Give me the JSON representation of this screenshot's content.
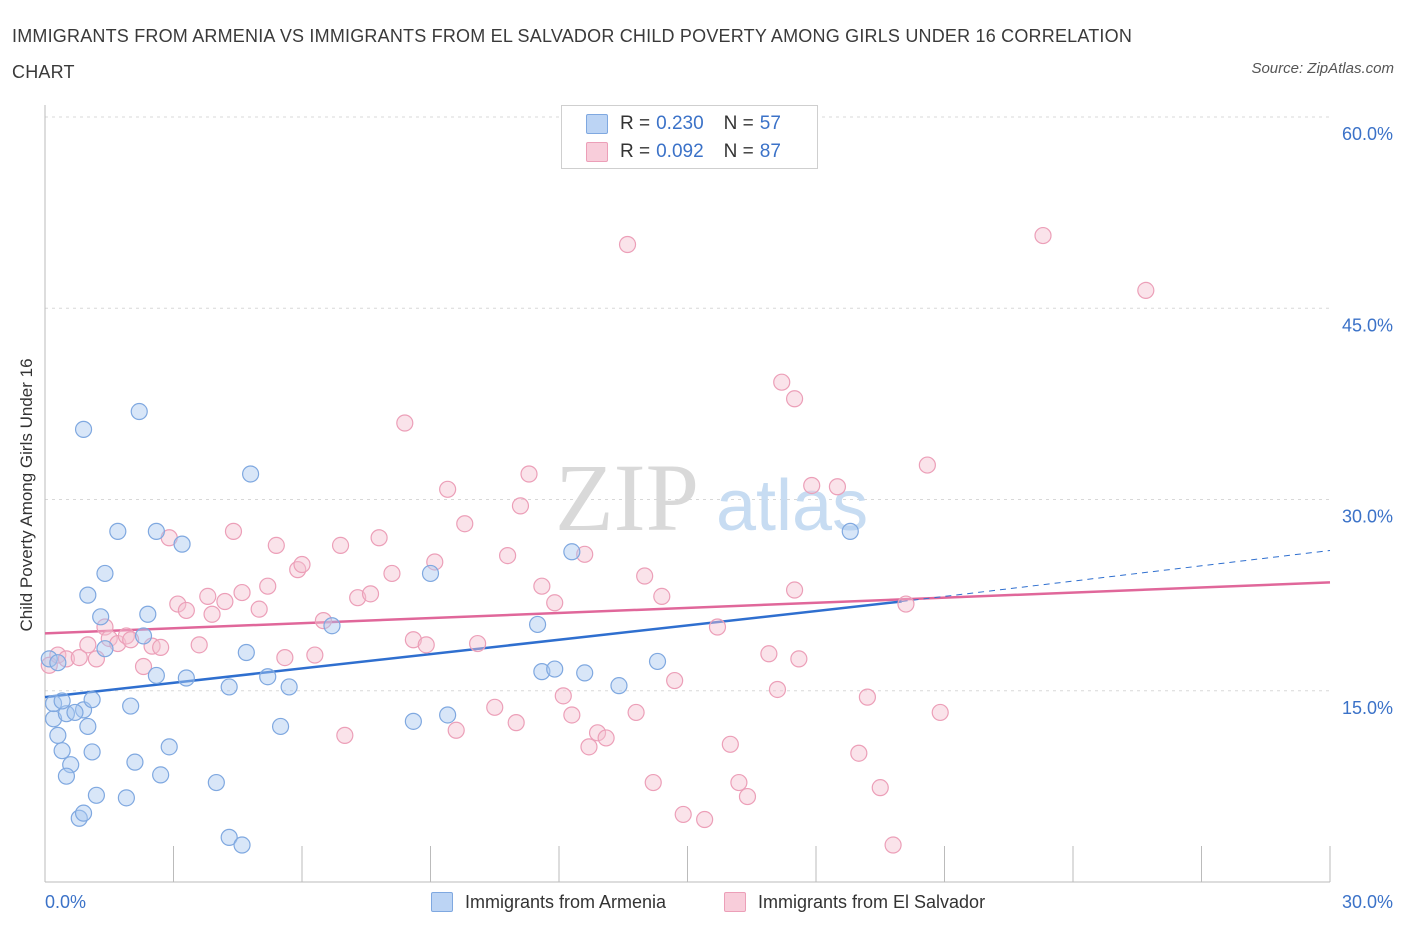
{
  "title": "IMMIGRANTS FROM ARMENIA VS IMMIGRANTS FROM EL SALVADOR CHILD POVERTY AMONG GIRLS UNDER 16 CORRELATION CHART",
  "source": "Source: ZipAtlas.com",
  "watermark": {
    "zip": "ZIP",
    "atlas": "atlas"
  },
  "legend": {
    "armenia": {
      "r_label": "R =",
      "r_value": "0.230",
      "n_label": "N =",
      "n_value": "57"
    },
    "elsalvador": {
      "r_label": "R =",
      "r_value": "0.092",
      "n_label": "N =",
      "n_value": "87"
    }
  },
  "bottom_legend": {
    "armenia": "Immigrants from Armenia",
    "elsalvador": "Immigrants from El Salvador"
  },
  "colors": {
    "armenia_fill": "#a9c8f0",
    "armenia_stroke": "#7fa8e0",
    "armenia_line": "#2f6fcf",
    "elsalvador_fill": "#f5c0d0",
    "elsalvador_stroke": "#ec9fb8",
    "elsalvador_line": "#e0679a",
    "tick_label": "#3b72c8"
  },
  "chart_data": {
    "type": "scatter",
    "title": "IMMIGRANTS FROM ARMENIA VS IMMIGRANTS FROM EL SALVADOR CHILD POVERTY AMONG GIRLS UNDER 16 CORRELATION CHART",
    "xlabel": "",
    "ylabel": "Child Poverty Among Girls Under 16",
    "xlim": [
      0,
      30
    ],
    "ylim": [
      0,
      60
    ],
    "x_tick_labels": [
      "0.0%",
      "30.0%"
    ],
    "y_tick_labels": [
      "15.0%",
      "30.0%",
      "45.0%",
      "60.0%"
    ],
    "y_ticks": [
      15,
      30,
      45,
      60
    ],
    "grid": true,
    "legend_position": "top-center",
    "series": [
      {
        "name": "Immigrants from Armenia",
        "trend": {
          "x": [
            0,
            20
          ],
          "y": [
            14.5,
            22.0
          ],
          "dashed_extension": {
            "x": [
              20,
              30
            ],
            "y": [
              22.0,
              26.0
            ]
          }
        },
        "points": [
          [
            0.1,
            17.5
          ],
          [
            0.2,
            12.8
          ],
          [
            0.3,
            17.2
          ],
          [
            0.5,
            13.2
          ],
          [
            0.4,
            10.3
          ],
          [
            0.6,
            9.2
          ],
          [
            0.5,
            8.3
          ],
          [
            0.8,
            5.0
          ],
          [
            0.9,
            5.4
          ],
          [
            0.9,
            13.5
          ],
          [
            1.0,
            12.2
          ],
          [
            1.1,
            10.2
          ],
          [
            1.2,
            6.8
          ],
          [
            1.3,
            20.8
          ],
          [
            1.4,
            18.3
          ],
          [
            1.4,
            24.2
          ],
          [
            1.0,
            22.5
          ],
          [
            0.9,
            35.5
          ],
          [
            1.7,
            27.5
          ],
          [
            1.9,
            6.6
          ],
          [
            2.0,
            13.8
          ],
          [
            2.1,
            9.4
          ],
          [
            2.2,
            36.9
          ],
          [
            2.3,
            19.3
          ],
          [
            2.4,
            21.0
          ],
          [
            2.6,
            27.5
          ],
          [
            2.7,
            8.4
          ],
          [
            2.6,
            16.2
          ],
          [
            2.9,
            10.6
          ],
          [
            3.3,
            16.0
          ],
          [
            3.2,
            26.5
          ],
          [
            4.0,
            7.8
          ],
          [
            4.3,
            15.3
          ],
          [
            4.3,
            3.5
          ],
          [
            4.6,
            2.9
          ],
          [
            4.7,
            18.0
          ],
          [
            4.8,
            32.0
          ],
          [
            5.2,
            16.1
          ],
          [
            5.5,
            12.2
          ],
          [
            5.7,
            15.3
          ],
          [
            6.7,
            20.1
          ],
          [
            8.6,
            12.6
          ],
          [
            9.0,
            24.2
          ],
          [
            9.4,
            13.1
          ],
          [
            11.5,
            20.2
          ],
          [
            11.6,
            16.5
          ],
          [
            11.9,
            16.7
          ],
          [
            12.3,
            25.9
          ],
          [
            12.6,
            16.4
          ],
          [
            13.4,
            15.4
          ],
          [
            14.3,
            17.3
          ],
          [
            18.8,
            27.5
          ],
          [
            0.2,
            14.0
          ],
          [
            0.4,
            14.2
          ],
          [
            0.7,
            13.3
          ],
          [
            1.1,
            14.3
          ],
          [
            0.3,
            11.5
          ]
        ]
      },
      {
        "name": "Immigrants from El Salvador",
        "trend": {
          "x": [
            0,
            30
          ],
          "y": [
            19.5,
            23.5
          ]
        },
        "points": [
          [
            0.1,
            17.0
          ],
          [
            0.3,
            17.8
          ],
          [
            0.5,
            17.5
          ],
          [
            0.8,
            17.6
          ],
          [
            1.0,
            18.6
          ],
          [
            1.2,
            17.5
          ],
          [
            1.4,
            20.0
          ],
          [
            1.5,
            19.1
          ],
          [
            1.7,
            18.7
          ],
          [
            1.9,
            19.3
          ],
          [
            2.0,
            19.0
          ],
          [
            2.3,
            16.9
          ],
          [
            2.5,
            18.5
          ],
          [
            2.7,
            18.4
          ],
          [
            2.9,
            27.0
          ],
          [
            3.1,
            21.8
          ],
          [
            3.3,
            21.3
          ],
          [
            3.6,
            18.6
          ],
          [
            3.8,
            22.4
          ],
          [
            3.9,
            21.0
          ],
          [
            4.2,
            22.0
          ],
          [
            4.4,
            27.5
          ],
          [
            4.6,
            22.7
          ],
          [
            5.0,
            21.4
          ],
          [
            5.2,
            23.2
          ],
          [
            5.4,
            26.4
          ],
          [
            5.6,
            17.6
          ],
          [
            5.9,
            24.5
          ],
          [
            6.0,
            24.9
          ],
          [
            6.3,
            17.8
          ],
          [
            6.5,
            20.5
          ],
          [
            6.9,
            26.4
          ],
          [
            7.0,
            11.5
          ],
          [
            7.3,
            22.3
          ],
          [
            7.6,
            22.6
          ],
          [
            7.8,
            27.0
          ],
          [
            8.1,
            24.2
          ],
          [
            8.4,
            36.0
          ],
          [
            8.6,
            19.0
          ],
          [
            8.9,
            18.6
          ],
          [
            9.1,
            25.1
          ],
          [
            9.4,
            30.8
          ],
          [
            9.6,
            11.9
          ],
          [
            9.8,
            28.1
          ],
          [
            10.1,
            18.7
          ],
          [
            10.5,
            13.7
          ],
          [
            10.8,
            25.6
          ],
          [
            11.0,
            12.5
          ],
          [
            11.1,
            29.5
          ],
          [
            11.3,
            32.0
          ],
          [
            11.6,
            23.2
          ],
          [
            11.9,
            21.9
          ],
          [
            12.1,
            14.6
          ],
          [
            12.3,
            13.1
          ],
          [
            12.6,
            25.7
          ],
          [
            12.7,
            10.6
          ],
          [
            12.9,
            11.7
          ],
          [
            13.1,
            11.3
          ],
          [
            13.6,
            50.0
          ],
          [
            13.8,
            13.3
          ],
          [
            14.0,
            24.0
          ],
          [
            14.2,
            7.8
          ],
          [
            14.4,
            22.4
          ],
          [
            14.7,
            15.8
          ],
          [
            14.9,
            5.3
          ],
          [
            15.4,
            4.9
          ],
          [
            15.7,
            20.0
          ],
          [
            16.0,
            10.8
          ],
          [
            16.2,
            7.8
          ],
          [
            16.4,
            6.7
          ],
          [
            16.9,
            17.9
          ],
          [
            17.1,
            15.1
          ],
          [
            17.2,
            39.2
          ],
          [
            17.5,
            37.9
          ],
          [
            17.5,
            22.9
          ],
          [
            17.6,
            17.5
          ],
          [
            17.9,
            31.1
          ],
          [
            18.5,
            31.0
          ],
          [
            19.0,
            10.1
          ],
          [
            19.2,
            14.5
          ],
          [
            19.5,
            7.4
          ],
          [
            19.8,
            2.9
          ],
          [
            20.1,
            21.8
          ],
          [
            20.6,
            32.7
          ],
          [
            20.9,
            13.3
          ],
          [
            23.3,
            50.7
          ],
          [
            25.7,
            46.4
          ]
        ]
      }
    ]
  }
}
